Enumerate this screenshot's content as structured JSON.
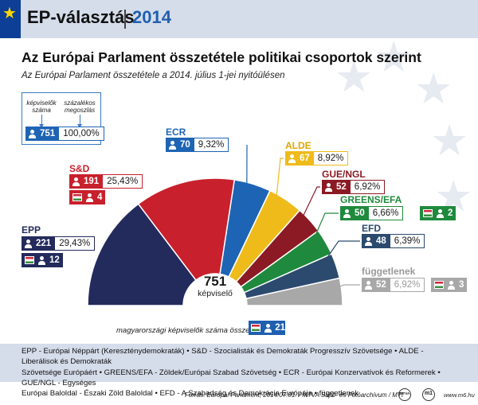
{
  "header": {
    "title": "EP-választás",
    "year": "2014"
  },
  "main_title": "Az Európai Parlament összetétele politikai csoportok szerint",
  "subtitle": "Az Európai Parlament összetétele a 2014. július 1-jei nyitóülésen",
  "key": {
    "label_count": "képviselők száma",
    "label_percent": "százalékos megoszlás",
    "count": "751",
    "percent": "100,00%"
  },
  "center": {
    "total": "751",
    "label": "képviselő"
  },
  "hungarian_total": {
    "label": "magyarországi képviselők száma összesen:",
    "value": "21"
  },
  "chart_data": {
    "type": "pie",
    "subtype": "half-donut parliament",
    "title": "Az Európai Parlament összetétele politikai csoportok szerint",
    "total": 751,
    "series": [
      {
        "name": "EPP",
        "value": 221,
        "percent": "29,43%",
        "hungarian": "12",
        "color": "#232a5c"
      },
      {
        "name": "S&D",
        "value": 191,
        "percent": "25,43%",
        "hungarian": "4",
        "color": "#c8202c"
      },
      {
        "name": "ECR",
        "value": 70,
        "percent": "9,32%",
        "hungarian": null,
        "color": "#1e64b4"
      },
      {
        "name": "ALDE",
        "value": 67,
        "percent": "8,92%",
        "hungarian": null,
        "color": "#efbb1a"
      },
      {
        "name": "GUE/NGL",
        "value": 52,
        "percent": "6,92%",
        "hungarian": null,
        "color": "#8c1a24"
      },
      {
        "name": "GREENS/EFA",
        "value": 50,
        "percent": "6,66%",
        "hungarian": "2",
        "color": "#1f8a3d"
      },
      {
        "name": "EFD",
        "value": 48,
        "percent": "6,39%",
        "hungarian": null,
        "color": "#2b4a6e"
      },
      {
        "name": "független",
        "value": 52,
        "percent": "6,92%",
        "hungarian": "3",
        "color": "#a8a8a8"
      }
    ]
  },
  "labels": {
    "epp": "EPP",
    "snd": "S&D",
    "ecr": "ECR",
    "alde": "ALDE",
    "gue": "GUE/NGL",
    "greens": "GREENS/EFA",
    "efd": "EFD",
    "fuggetlen": "függetlenek"
  },
  "legend": {
    "l1": "EPP - Európai Néppárt (Kereszténydemokraták) • S&D - Szocialisták és Demokraták Progresszív Szövetsége • ALDE - Liberálisok és Demokraták",
    "l2": "Szövetsége Európáért • GREENS/EFA - Zöldek/Európai Szabad Szövetség • ECR - Európai Konzervatívok és Reformerek • GUE/NGL - Egységes",
    "l3": "Európai Baloldal - Északi Zöld Baloldal • EFD - A Szabadság és Demokrácia Európája • függetlenek"
  },
  "footer": {
    "source": "Forrás: Európai Parlament, 2014.07.01. / MTVA Sajtó- és Fotóarchívum / MTI",
    "logo_mti": "MTVA",
    "logo_m1": "m1",
    "url": "www.m6.hu"
  }
}
